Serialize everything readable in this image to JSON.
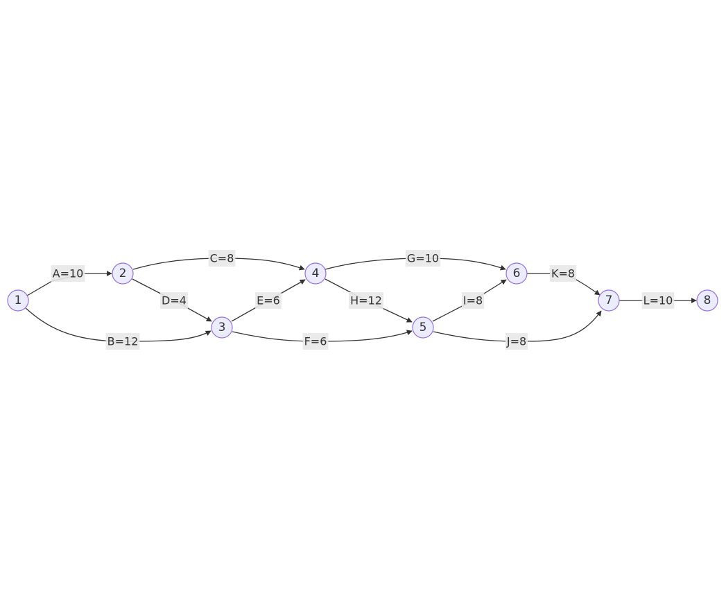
{
  "diagram": {
    "type": "activity-on-arrow network",
    "nodes": [
      {
        "id": "1",
        "label": "1"
      },
      {
        "id": "2",
        "label": "2"
      },
      {
        "id": "3",
        "label": "3"
      },
      {
        "id": "4",
        "label": "4"
      },
      {
        "id": "5",
        "label": "5"
      },
      {
        "id": "6",
        "label": "6"
      },
      {
        "id": "7",
        "label": "7"
      },
      {
        "id": "8",
        "label": "8"
      }
    ],
    "edges": [
      {
        "id": "A",
        "from": "1",
        "to": "2",
        "label": "A=10"
      },
      {
        "id": "B",
        "from": "1",
        "to": "3",
        "label": "B=12"
      },
      {
        "id": "C",
        "from": "2",
        "to": "4",
        "label": "C=8"
      },
      {
        "id": "D",
        "from": "2",
        "to": "3",
        "label": "D=4"
      },
      {
        "id": "E",
        "from": "3",
        "to": "4",
        "label": "E=6"
      },
      {
        "id": "F",
        "from": "3",
        "to": "5",
        "label": "F=6"
      },
      {
        "id": "G",
        "from": "4",
        "to": "6",
        "label": "G=10"
      },
      {
        "id": "H",
        "from": "4",
        "to": "5",
        "label": "H=12"
      },
      {
        "id": "I",
        "from": "5",
        "to": "6",
        "label": "I=8"
      },
      {
        "id": "J",
        "from": "5",
        "to": "7",
        "label": "J=8"
      },
      {
        "id": "K",
        "from": "6",
        "to": "7",
        "label": "K=8"
      },
      {
        "id": "L",
        "from": "7",
        "to": "8",
        "label": "L=10"
      }
    ]
  },
  "colors": {
    "node_fill": "#ececff",
    "node_stroke": "#9370db",
    "edge_stroke": "#333333",
    "label_background": "#e8e8e8",
    "text": "#333333"
  }
}
